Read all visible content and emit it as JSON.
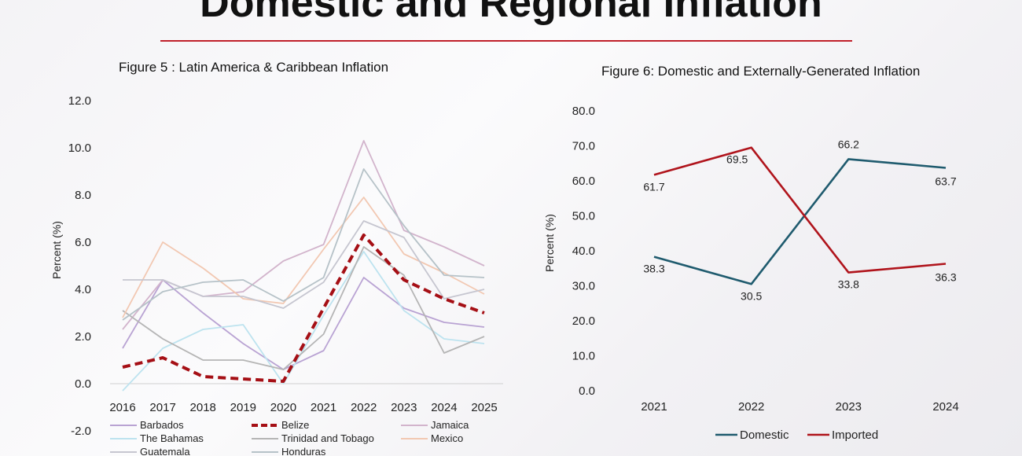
{
  "slide": {
    "title": "Domestic and Regional Inflation"
  },
  "chart_data": [
    {
      "type": "line",
      "title": "Figure 5 : Latin America & Caribbean Inflation",
      "xlabel": "",
      "ylabel": "Percent (%)",
      "ylim": [
        -2.0,
        12.0
      ],
      "y_ticks": [
        "12.0",
        "10.0",
        "8.0",
        "6.0",
        "4.0",
        "2.0",
        "0.0",
        "-2.0"
      ],
      "categories": [
        "2016",
        "2017",
        "2018",
        "2019",
        "2020",
        "2021",
        "2022",
        "2023",
        "2024",
        "2025"
      ],
      "grid": false,
      "legend": "bottom",
      "series": [
        {
          "name": "Barbados",
          "color": "#b9a3d3",
          "dashed": false,
          "values": [
            1.5,
            4.4,
            3.0,
            1.7,
            0.6,
            1.4,
            4.5,
            3.2,
            2.6,
            2.4
          ]
        },
        {
          "name": "Belize",
          "color": "#a50f15",
          "dashed": true,
          "values": [
            0.7,
            1.1,
            0.3,
            0.2,
            0.1,
            3.2,
            6.3,
            4.4,
            3.6,
            3.0
          ]
        },
        {
          "name": "Jamaica",
          "color": "#d2b4cc",
          "dashed": false,
          "values": [
            2.3,
            4.4,
            3.7,
            3.9,
            5.2,
            5.9,
            10.3,
            6.5,
            5.8,
            5.0
          ]
        },
        {
          "name": "The Bahamas",
          "color": "#bde3ef",
          "dashed": false,
          "values": [
            -0.3,
            1.5,
            2.3,
            2.5,
            0.0,
            2.9,
            5.6,
            3.1,
            1.9,
            1.7
          ]
        },
        {
          "name": "Trinidad and Tobago",
          "color": "#b5b5b5",
          "dashed": false,
          "values": [
            3.1,
            1.9,
            1.0,
            1.0,
            0.6,
            2.1,
            5.8,
            4.6,
            1.3,
            2.0
          ]
        },
        {
          "name": "Mexico",
          "color": "#f2c8b2",
          "dashed": false,
          "values": [
            2.8,
            6.0,
            4.9,
            3.6,
            3.4,
            5.7,
            7.9,
            5.5,
            4.7,
            3.8
          ]
        },
        {
          "name": "Guatemala",
          "color": "#c6c6d0",
          "dashed": false,
          "values": [
            4.4,
            4.4,
            3.7,
            3.7,
            3.2,
            4.3,
            6.9,
            6.2,
            3.6,
            4.0
          ]
        },
        {
          "name": "Honduras",
          "color": "#b6c2c8",
          "dashed": false,
          "values": [
            2.7,
            3.9,
            4.3,
            4.4,
            3.5,
            4.5,
            9.1,
            6.7,
            4.6,
            4.5
          ]
        }
      ]
    },
    {
      "type": "line",
      "title": "Figure 6: Domestic and Externally-Generated Inflation",
      "xlabel": "",
      "ylabel": "Percent (%)",
      "ylim": [
        0,
        80
      ],
      "y_ticks": [
        "80.0",
        "70.0",
        "60.0",
        "50.0",
        "40.0",
        "30.0",
        "20.0",
        "10.0",
        "0.0"
      ],
      "categories": [
        "2021",
        "2022",
        "2023",
        "2024"
      ],
      "grid": false,
      "legend": "bottom",
      "series": [
        {
          "name": "Domestic",
          "color": "#1f5b6e",
          "values": [
            38.3,
            30.5,
            66.2,
            63.7
          ],
          "labels": [
            "38.3",
            "30.5",
            "66.2",
            "63.7"
          ]
        },
        {
          "name": "Imported",
          "color": "#b0141c",
          "values": [
            61.7,
            69.5,
            33.8,
            36.3
          ],
          "labels": [
            "61.7",
            "69.5",
            "33.8",
            "36.3"
          ]
        }
      ]
    }
  ]
}
